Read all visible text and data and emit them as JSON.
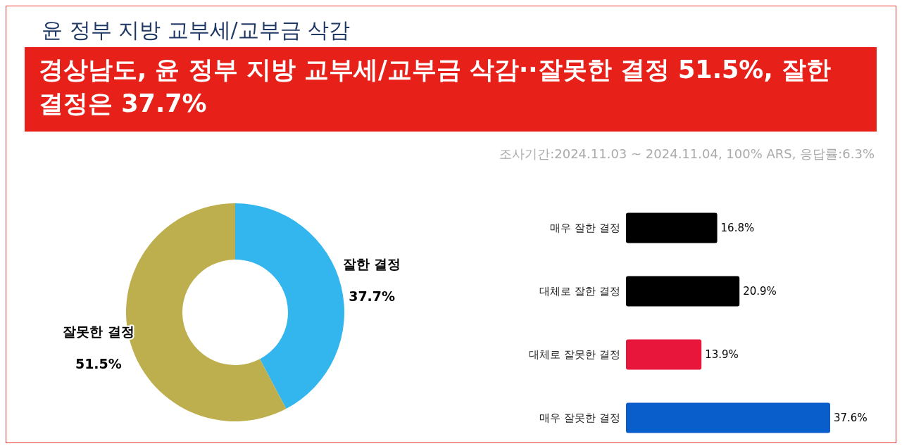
{
  "chart_data": [
    {
      "type": "donut",
      "title": "윤 정부 지방 교부세/교부금 삭감",
      "subtitle": "경상남도, 윤 정부 지방 교부세/교부금 삭감··잘못한 결정 51.5%, 잘한 결정은 37.7%",
      "annotations": [
        "조사기간:2024.11.03 ~ 2024.11.04, 100% ARS, 응답률:6.3%"
      ],
      "categories": [
        "잘한 결정",
        "잘못한 결정"
      ],
      "values": [
        37.7,
        51.5
      ],
      "colors": [
        "#33b5ee",
        "#bdae4e"
      ],
      "value_labels": [
        "37.7%",
        "51.5%"
      ]
    },
    {
      "type": "bar",
      "orientation": "horizontal",
      "categories": [
        "매우 잘한 결정",
        "대체로 잘한 결정",
        "대체로 잘못한 결정",
        "매우 잘못한 결정"
      ],
      "values": [
        16.8,
        20.9,
        13.9,
        37.6
      ],
      "colors": [
        "#000000",
        "#000000",
        "#e8163a",
        "#0a5ecb"
      ],
      "value_labels": [
        "16.8%",
        "20.9%",
        "13.9%",
        "37.6%"
      ]
    }
  ]
}
